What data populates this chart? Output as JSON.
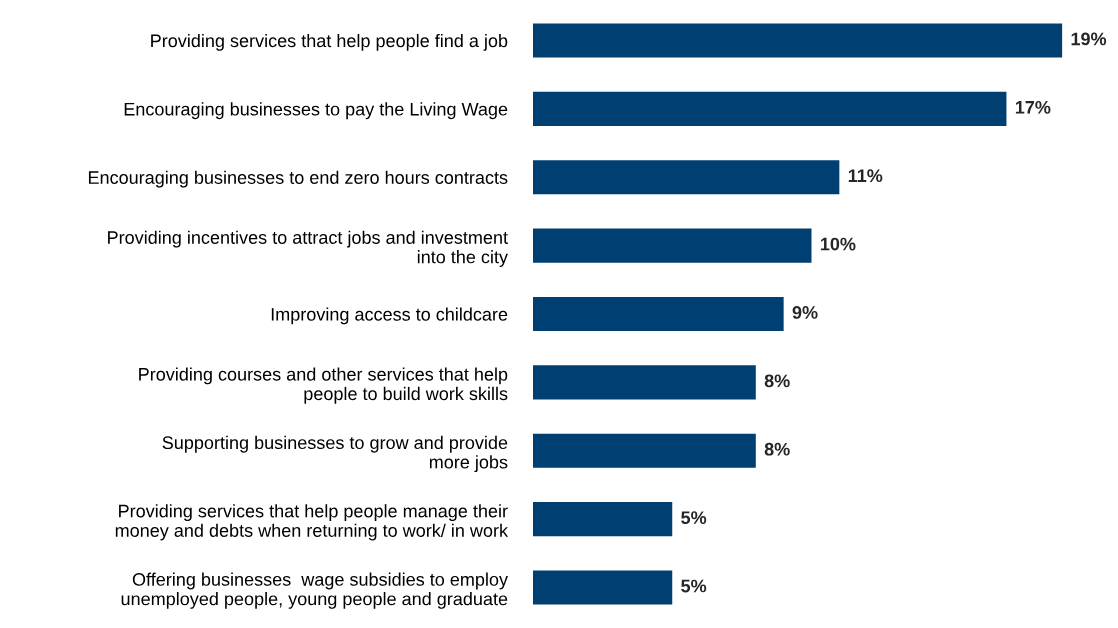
{
  "chart_data": {
    "type": "bar",
    "orientation": "horizontal",
    "color": "#003f72",
    "categories": [
      "Providing services that help people find a job",
      "Encouraging businesses to pay the Living Wage",
      "Encouraging businesses to end zero hours contracts",
      "Providing incentives to attract jobs and investment\ninto the city",
      "Improving access to childcare",
      "Providing courses and other services that help\npeople to build work skills",
      "Supporting businesses to grow and provide\nmore jobs",
      "Providing services that help people manage their\nmoney and debts when returning to work/ in work",
      "Offering businesses  wage subsidies to employ\nunemployed people, young people and graduate"
    ],
    "values": [
      19,
      17,
      11,
      10,
      9,
      8,
      8,
      5,
      5
    ],
    "value_labels": [
      "19%",
      "17%",
      "11%",
      "10%",
      "9%",
      "8%",
      "8%",
      "5%",
      "5%"
    ],
    "grid": false,
    "legend": false,
    "tick_labels": "y"
  }
}
